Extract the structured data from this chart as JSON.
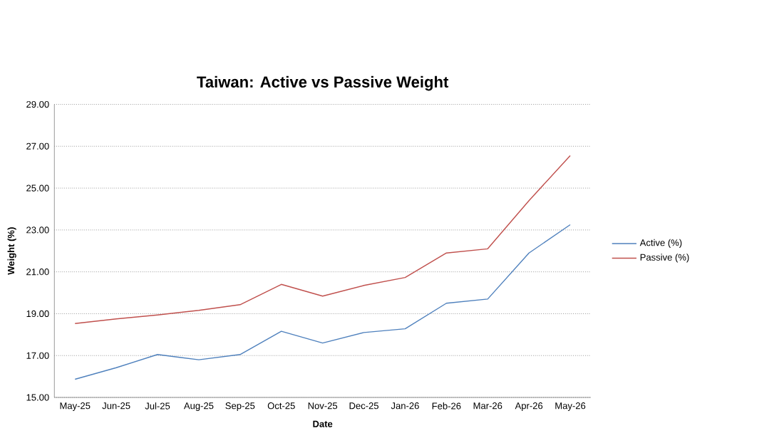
{
  "chart_data": {
    "type": "line",
    "title": "Taiwan: Active vs Passive Weight",
    "xlabel": "Date",
    "ylabel": "Weight (%)",
    "categories": [
      "May-25",
      "Jun-25",
      "Jul-25",
      "Aug-25",
      "Sep-25",
      "Oct-25",
      "Nov-25",
      "Dec-25",
      "Jan-26",
      "Feb-26",
      "Mar-26",
      "Apr-26",
      "May-26"
    ],
    "series": [
      {
        "name": "Active (%)",
        "color": "#4f81bd",
        "values": [
          15.87,
          16.42,
          17.05,
          16.8,
          17.05,
          18.16,
          17.6,
          18.1,
          18.28,
          19.5,
          19.7,
          21.9,
          23.25
        ]
      },
      {
        "name": "Passive (%)",
        "color": "#c0504d",
        "values": [
          18.53,
          18.75,
          18.94,
          19.16,
          19.43,
          20.4,
          19.84,
          20.35,
          20.73,
          21.9,
          22.1,
          24.4,
          26.55
        ]
      }
    ],
    "ylim": [
      15,
      29
    ],
    "yticks": [
      {
        "value": 15,
        "label": "15.00"
      },
      {
        "value": 17,
        "label": "17.00"
      },
      {
        "value": 19,
        "label": "19.00"
      },
      {
        "value": 21,
        "label": "21.00"
      },
      {
        "value": 23,
        "label": "23.00"
      },
      {
        "value": 25,
        "label": "25.00"
      },
      {
        "value": 27,
        "label": "27.00"
      },
      {
        "value": 29,
        "label": "29.00"
      }
    ],
    "grid": "y",
    "legend": "right",
    "marker": "none",
    "line_style": "solid"
  }
}
